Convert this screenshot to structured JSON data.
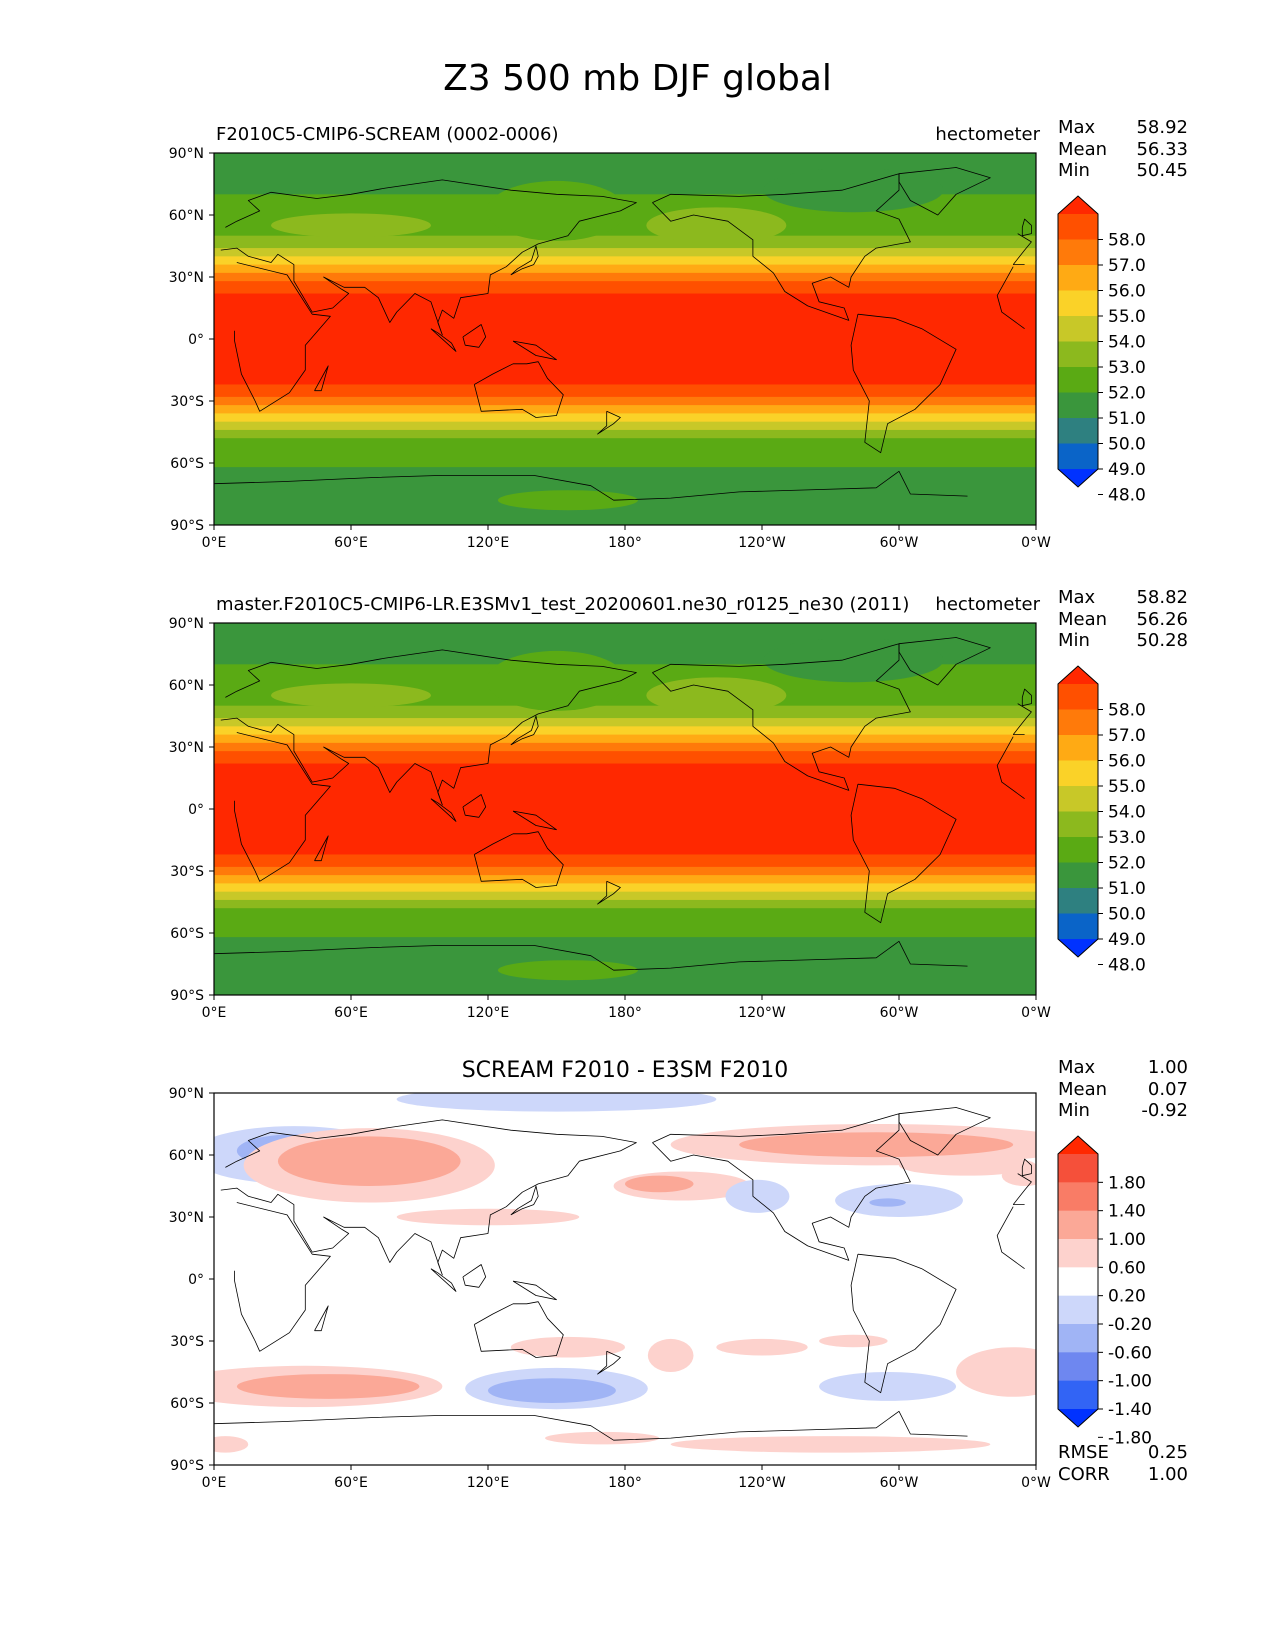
{
  "figure_title": "Z3 500 mb DJF global",
  "ylabels": [
    "90°N",
    "60°N",
    "30°N",
    "0°",
    "30°S",
    "60°S",
    "90°S"
  ],
  "xlabels": [
    "0°E",
    "60°E",
    "120°E",
    "180°",
    "120°W",
    "60°W",
    "0°W"
  ],
  "stat_labels": {
    "max": "Max",
    "mean": "Mean",
    "min": "Min",
    "rmse": "RMSE",
    "corr": "CORR"
  },
  "panels": [
    {
      "left_title": "F2010C5-CMIP6-SCREAM (0002-0006)",
      "units": "hectometer",
      "max": "58.92",
      "mean": "56.33",
      "min": "50.45",
      "colorbar_labels": [
        "58.0",
        "57.0",
        "56.0",
        "55.0",
        "54.0",
        "53.0",
        "52.0",
        "51.0",
        "50.0",
        "49.0",
        "48.0"
      ]
    },
    {
      "left_title": "master.F2010C5-CMIP6-LR.E3SMv1_test_20200601.ne30_r0125_ne30 (2011)",
      "units": "hectometer",
      "max": "58.82",
      "mean": "56.26",
      "min": "50.28",
      "colorbar_labels": [
        "58.0",
        "57.0",
        "56.0",
        "55.0",
        "54.0",
        "53.0",
        "52.0",
        "51.0",
        "50.0",
        "49.0",
        "48.0"
      ]
    },
    {
      "center_title": "SCREAM F2010 - E3SM F2010",
      "max": "1.00",
      "mean": "0.07",
      "min": "-0.92",
      "rmse": "0.25",
      "corr": "1.00",
      "colorbar_labels": [
        "1.80",
        "1.40",
        "1.00",
        "0.60",
        "0.20",
        "-0.20",
        "-0.60",
        "-1.00",
        "-1.40",
        "-1.80"
      ]
    }
  ],
  "chart_data": [
    {
      "type": "heatmap",
      "title": "F2010C5-CMIP6-SCREAM (0002-0006)",
      "units": "hectometer",
      "xlim": [
        0,
        360
      ],
      "ylim": [
        -90,
        90
      ],
      "levels": [
        48,
        49,
        50,
        51,
        52,
        53,
        54,
        55,
        56,
        57,
        58
      ],
      "colors": [
        "#0032ff",
        "#0a64c8",
        "#2e8080",
        "#3a963c",
        "#5aaa14",
        "#8cb91e",
        "#c8c828",
        "#fad228",
        "#ffaa14",
        "#ff7a0a",
        "#ff5000",
        "#ff2800"
      ],
      "stats": {
        "max": 58.92,
        "mean": 56.33,
        "min": 50.45
      }
    },
    {
      "type": "heatmap",
      "title": "master.F2010C5-CMIP6-LR.E3SMv1_test_20200601.ne30_r0125_ne30 (2011)",
      "units": "hectometer",
      "xlim": [
        0,
        360
      ],
      "ylim": [
        -90,
        90
      ],
      "levels": [
        48,
        49,
        50,
        51,
        52,
        53,
        54,
        55,
        56,
        57,
        58
      ],
      "colors": [
        "#0032ff",
        "#0a64c8",
        "#2e8080",
        "#3a963c",
        "#5aaa14",
        "#8cb91e",
        "#c8c828",
        "#fad228",
        "#ffaa14",
        "#ff7a0a",
        "#ff5000",
        "#ff2800"
      ],
      "stats": {
        "max": 58.82,
        "mean": 56.26,
        "min": 50.28
      }
    },
    {
      "type": "heatmap",
      "title": "SCREAM F2010 - E3SM F2010",
      "xlim": [
        0,
        360
      ],
      "ylim": [
        -90,
        90
      ],
      "levels": [
        -1.8,
        -1.4,
        -1.0,
        -0.6,
        -0.2,
        0.2,
        0.6,
        1.0,
        1.4,
        1.8
      ],
      "colors": [
        "#0032ff",
        "#3264f5",
        "#6e87f0",
        "#a0b4f5",
        "#cdd7fa",
        "#ffffff",
        "#fdd2cd",
        "#fba897",
        "#f97c66",
        "#f5503a",
        "#ff2800"
      ],
      "stats": {
        "max": 1.0,
        "mean": 0.07,
        "min": -0.92,
        "rmse": 0.25,
        "corr": 1.0
      }
    }
  ]
}
